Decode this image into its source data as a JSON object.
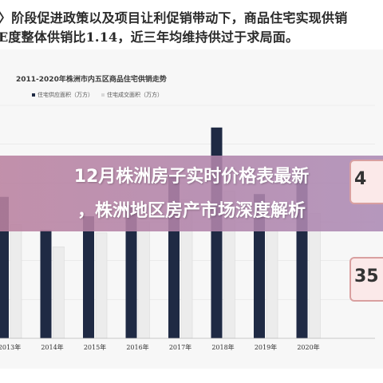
{
  "header": {
    "line1": "〉阶段促进政策以及项目让利促销带动下，商品住宅实现供销",
    "line2": "E度整体供销比1.14，近三年均维持供过于求局面。"
  },
  "overlay": {
    "line1": "12月株洲房子实时价格表最新",
    "line2": "，株洲地区房产市场深度解析"
  },
  "side_cards": [
    {
      "value": "4"
    },
    {
      "value": "35"
    }
  ],
  "colors": {
    "supply": "#1f2a44",
    "sales": "#ececec",
    "overlay": "#b884a8"
  },
  "chart_data": {
    "type": "bar",
    "title": "2011-2020年株洲市内五区商品住宅供销走势",
    "categories": [
      "2013年",
      "2014年",
      "2015年",
      "2016年",
      "2017年",
      "2018年",
      "2019年",
      "2020年"
    ],
    "series": [
      {
        "name": "住宅供应面积（万方）",
        "values": [
          255,
          195,
          220,
          240,
          295,
          380,
          260,
          300
        ]
      },
      {
        "name": "住宅成交面积（万方）",
        "values": [
          205,
          165,
          190,
          210,
          250,
          265,
          195,
          225
        ]
      }
    ],
    "ylim": [
      0,
      420
    ],
    "grid": true,
    "legend_position": "top-left"
  }
}
